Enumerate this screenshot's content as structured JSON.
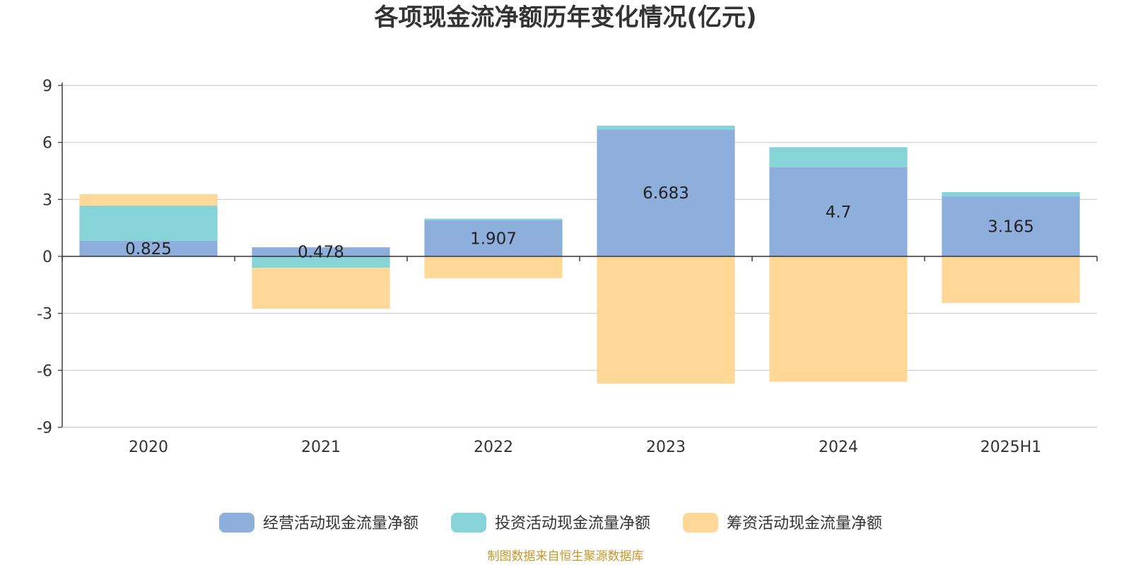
{
  "chart_data": {
    "type": "bar",
    "stacked": true,
    "title": "各项现金流净额历年变化情况(亿元)",
    "categories": [
      "2020",
      "2021",
      "2022",
      "2023",
      "2024",
      "2025H1"
    ],
    "series": [
      {
        "name": "经营活动现金流量净额",
        "color": "#8eaedc",
        "values": [
          0.825,
          0.478,
          1.907,
          6.683,
          4.7,
          3.165
        ]
      },
      {
        "name": "投资活动现金流量净额",
        "color": "#86d4d8",
        "values": [
          1.85,
          -0.6,
          0.08,
          0.2,
          1.05,
          0.22
        ]
      },
      {
        "name": "筹资活动现金流量净额",
        "color": "#ffd797",
        "values": [
          0.6,
          -2.15,
          -1.15,
          -6.7,
          -6.6,
          -2.45
        ]
      }
    ],
    "data_labels": [
      "0.825",
      "0.478",
      "1.907",
      "6.683",
      "4.7",
      "3.165"
    ],
    "ylim": [
      -9,
      9
    ],
    "yticks": [
      9,
      6,
      3,
      0,
      -3,
      -6,
      -9
    ],
    "xlabel": "",
    "ylabel": "",
    "grid": true,
    "legend_position": "bottom-center"
  },
  "source_note": "制图数据来自恒生聚源数据库"
}
